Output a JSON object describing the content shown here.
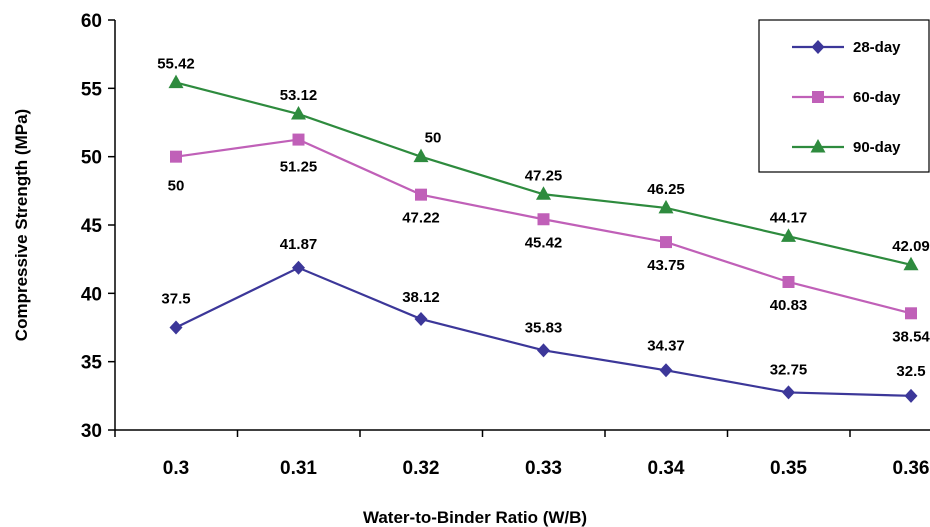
{
  "chart_data": {
    "type": "line",
    "title": "",
    "xlabel": "Water-to-Binder Ratio (W/B)",
    "ylabel": "Compressive Strength (MPa)",
    "categories": [
      "0.3",
      "0.31",
      "0.32",
      "0.33",
      "0.34",
      "0.35",
      "0.36"
    ],
    "ylim": [
      30,
      60
    ],
    "yticks": [
      30,
      35,
      40,
      45,
      50,
      55,
      60
    ],
    "grid": false,
    "legend_position": "top-right",
    "series": [
      {
        "name": "28-day",
        "values": [
          37.5,
          41.87,
          38.12,
          35.83,
          34.37,
          32.75,
          32.5
        ],
        "labels": [
          "37.5",
          "41.87",
          "38.12",
          "35.83",
          "34.37",
          "32.75",
          "32.5"
        ],
        "color": "#3c3799",
        "marker": "diamond"
      },
      {
        "name": "60-day",
        "values": [
          50,
          51.25,
          47.22,
          45.42,
          43.75,
          40.83,
          38.54
        ],
        "labels": [
          "50",
          "51.25",
          "47.22",
          "45.42",
          "43.75",
          "40.83",
          "38.54"
        ],
        "color": "#c060b8",
        "marker": "square"
      },
      {
        "name": "90-day",
        "values": [
          55.42,
          53.12,
          50,
          47.25,
          46.25,
          44.17,
          42.09
        ],
        "labels": [
          "55.42",
          "53.12",
          "50",
          "47.25",
          "46.25",
          "44.17",
          "42.09"
        ],
        "color": "#2e8b3e",
        "marker": "triangle"
      }
    ]
  }
}
